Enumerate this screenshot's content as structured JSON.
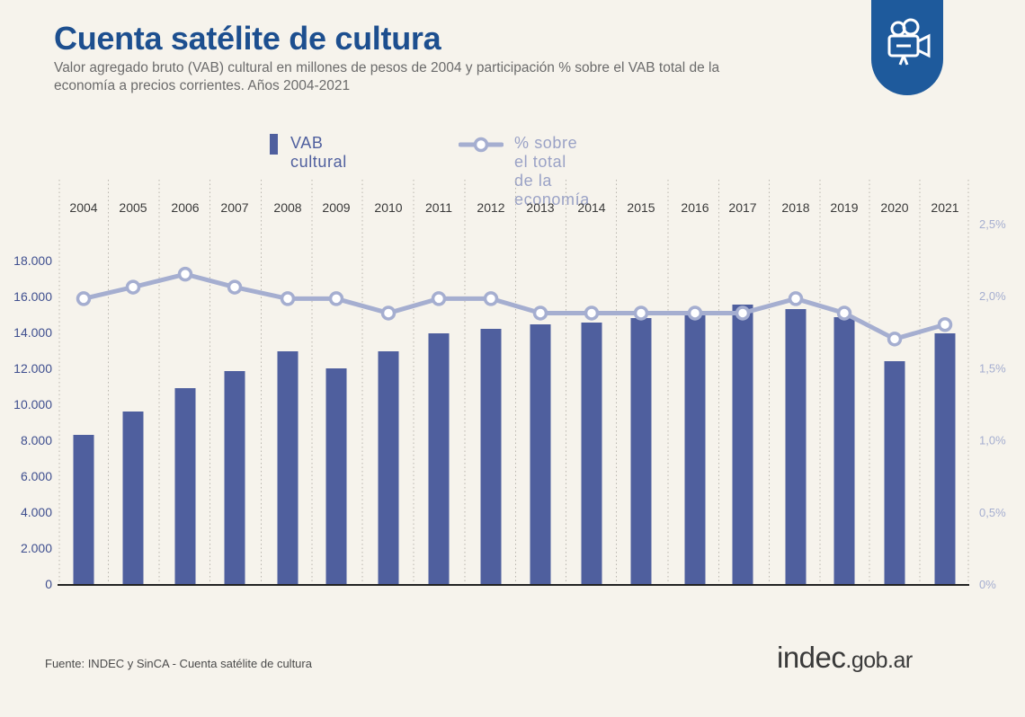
{
  "header": {
    "title": "Cuenta satélite de cultura",
    "subtitle": "Valor agregado bruto (VAB) cultural en millones de pesos de 2004 y participación % sobre el VAB total de la economía a precios corrientes. Años 2004-2021"
  },
  "badge": {
    "icon": "film-camera-icon",
    "color": "#1e5a9c"
  },
  "legend": {
    "bar_label": "VAB cultural",
    "line_label": "% sobre el total de la economía"
  },
  "footer": {
    "source": "Fuente: INDEC y SinCA - Cuenta satélite de cultura",
    "logo_main": "indec",
    "logo_suffix": ".gob.ar"
  },
  "colors": {
    "bar": "#4f5f9e",
    "line": "#a5aed0",
    "title": "#1d4f8f",
    "axis_left": "#3f4f8f",
    "axis_right": "#a5aed0"
  },
  "chart_data": {
    "type": "bar",
    "title": "Cuenta satélite de cultura",
    "categories": [
      "2004",
      "2005",
      "2006",
      "2007",
      "2008",
      "2009",
      "2010",
      "2011",
      "2012",
      "2013",
      "2014",
      "2015",
      "2016",
      "2017",
      "2018",
      "2019",
      "2020",
      "2021"
    ],
    "series": [
      {
        "name": "VAB cultural",
        "type": "bar",
        "axis": "left",
        "values": [
          8300,
          9600,
          10900,
          11850,
          12950,
          12000,
          12950,
          13950,
          14200,
          14450,
          14550,
          14800,
          15050,
          15550,
          15300,
          14850,
          12400,
          13950
        ]
      },
      {
        "name": "% sobre el total de la economía",
        "type": "line",
        "axis": "right",
        "values": [
          1.98,
          2.06,
          2.15,
          2.06,
          1.98,
          1.98,
          1.88,
          1.98,
          1.98,
          1.88,
          1.88,
          1.88,
          1.88,
          1.88,
          1.98,
          1.88,
          1.7,
          1.8
        ]
      }
    ],
    "y_left": {
      "ylim": [
        0,
        18000
      ],
      "ticks": [
        "0",
        "2.000",
        "4.000",
        "6.000",
        "8.000",
        "10.000",
        "12.000",
        "14.000",
        "16.000",
        "18.000"
      ],
      "tick_values": [
        0,
        2000,
        4000,
        6000,
        8000,
        10000,
        12000,
        14000,
        16000,
        18000
      ]
    },
    "y_right": {
      "ylim": [
        0,
        2.5
      ],
      "ticks": [
        "0%",
        "0,5%",
        "1,0%",
        "1,5%",
        "2,0%",
        "2,5%"
      ],
      "tick_values": [
        0,
        0.5,
        1.0,
        1.5,
        2.0,
        2.5
      ]
    },
    "grid": "vertical dotted separators",
    "legend_position": "top"
  }
}
